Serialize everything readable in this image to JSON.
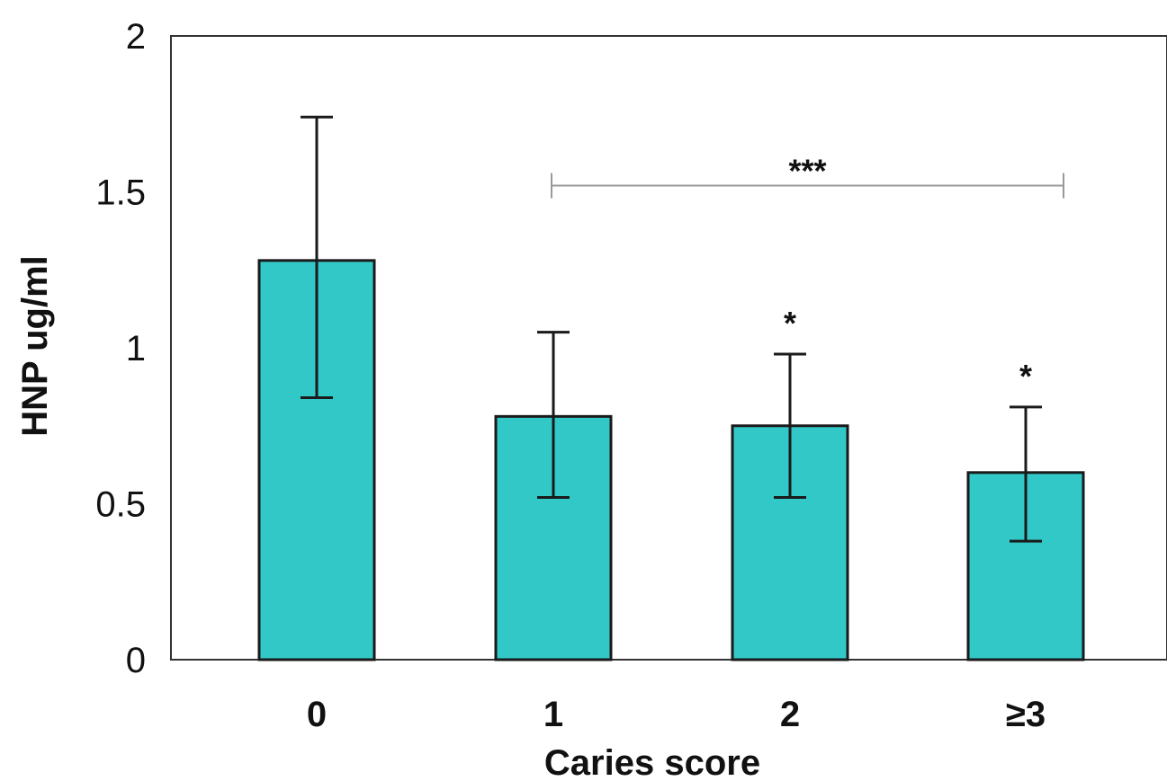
{
  "chart_data": {
    "type": "bar",
    "categories": [
      "0",
      "1",
      "2",
      "≥3"
    ],
    "values": [
      1.28,
      0.78,
      0.75,
      0.6
    ],
    "error_upper": [
      1.74,
      1.05,
      0.98,
      0.81
    ],
    "error_lower": [
      0.84,
      0.52,
      0.52,
      0.38
    ],
    "significance": [
      "",
      "",
      "*",
      "*"
    ],
    "bracket": {
      "from_category": "1",
      "to_category": "≥3",
      "y": 1.52,
      "label": "***"
    },
    "xlabel": "Caries score",
    "ylabel": "HNP ug/ml",
    "ylim": [
      0,
      2
    ],
    "yticks": [
      "0",
      "0.5",
      "1",
      "1.5",
      "2"
    ],
    "grid": false,
    "colors": {
      "bar": "#33C8C8",
      "bar_edge": "#1a1a1a",
      "bracket": "#999999"
    }
  }
}
